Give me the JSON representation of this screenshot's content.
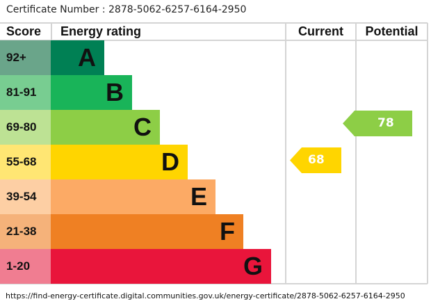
{
  "certificate": {
    "label": "Certificate Number : 2878-5062-6257-6164-2950"
  },
  "chart_data": {
    "type": "bar",
    "headers": {
      "score": "Score",
      "rating": "Energy rating",
      "current": "Current",
      "potential": "Potential"
    },
    "bands": [
      {
        "score": "92+",
        "letter": "A",
        "color": "#008054",
        "score_color": "#6aa58a"
      },
      {
        "score": "81-91",
        "letter": "B",
        "color": "#19b459",
        "score_color": "#78cd91"
      },
      {
        "score": "69-80",
        "letter": "C",
        "color": "#8dce46",
        "score_color": "#bde294"
      },
      {
        "score": "55-68",
        "letter": "D",
        "color": "#ffd500",
        "score_color": "#ffe673"
      },
      {
        "score": "39-54",
        "letter": "E",
        "color": "#fcaa65",
        "score_color": "#fdcfa4"
      },
      {
        "score": "21-38",
        "letter": "F",
        "color": "#ef8023",
        "score_color": "#f5b27a"
      },
      {
        "score": "1-20",
        "letter": "G",
        "color": "#e9153b",
        "score_color": "#f07d91"
      }
    ],
    "current": {
      "value": "68",
      "band": "D",
      "color": "#ffd500"
    },
    "potential": {
      "value": "78",
      "band": "C",
      "color": "#8dce46"
    }
  },
  "footer": {
    "url": "https://find-energy-certificate.digital.communities.gov.uk/energy-certificate/2878-5062-6257-6164-2950"
  }
}
